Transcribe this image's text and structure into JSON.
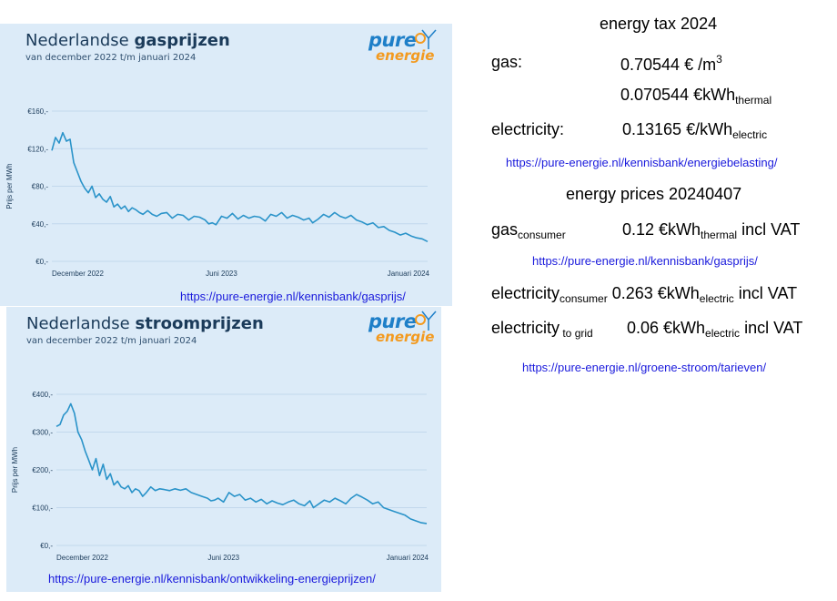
{
  "gas_chart": {
    "title_normal": "Nederlandse ",
    "title_bold": "gasprijzen",
    "subtitle": "van december 2022 t/m januari 2024",
    "logo_top": "pure",
    "logo_bottom": "energie",
    "url": "https://pure-energie.nl/kennisbank/gasprijs/"
  },
  "elec_chart": {
    "title_normal": "Nederlandse ",
    "title_bold": "stroomprijzen",
    "subtitle": "van december 2022 t/m januari 2024",
    "logo_top": "pure",
    "logo_bottom": "energie",
    "url": "https://pure-energie.nl/kennisbank/ontwikkeling-energieprijzen/"
  },
  "colors": {
    "panel_bg": "#dcebf8",
    "line": "#2a93c9",
    "title": "#1b3b5a",
    "link": "#1a1adc",
    "logo_blue": "#1e7fc8",
    "logo_orange": "#f39a1f"
  },
  "chart_data": [
    {
      "type": "line",
      "title": "Nederlandse gasprijzen",
      "subtitle": "van december 2022 t/m januari 2024",
      "xlabel": "",
      "ylabel": "Prijs per MWh",
      "yticks": [
        "€0,-",
        "€40,-",
        "€80,-",
        "€120,-",
        "€160,-"
      ],
      "ylim": [
        0,
        160
      ],
      "xtick_labels": [
        "December 2022",
        "Juni 2023",
        "Januari 2024"
      ],
      "xtick_positions": [
        5,
        186,
        396
      ],
      "grid": true,
      "x": [
        0,
        4,
        8,
        12,
        16,
        20,
        24,
        28,
        32,
        36,
        40,
        44,
        48,
        52,
        56,
        60,
        64,
        68,
        72,
        76,
        80,
        84,
        88,
        92,
        96,
        100,
        105,
        110,
        115,
        120,
        126,
        132,
        138,
        144,
        150,
        156,
        162,
        168,
        172,
        176,
        180,
        186,
        192,
        198,
        204,
        210,
        216,
        222,
        228,
        234,
        240,
        246,
        252,
        258,
        264,
        270,
        276,
        282,
        286,
        292,
        298,
        304,
        310,
        316,
        322,
        328,
        334,
        340,
        346,
        352,
        358,
        364,
        370,
        376,
        382,
        388,
        394,
        400,
        406,
        412
      ],
      "y": [
        118,
        132,
        126,
        137,
        128,
        130,
        105,
        95,
        85,
        78,
        73,
        80,
        68,
        72,
        66,
        63,
        69,
        58,
        61,
        56,
        59,
        53,
        57,
        55,
        52,
        50,
        54,
        50,
        48,
        51,
        52,
        46,
        50,
        49,
        44,
        48,
        47,
        44,
        40,
        41,
        39,
        48,
        46,
        51,
        45,
        49,
        46,
        48,
        47,
        43,
        50,
        48,
        52,
        46,
        49,
        47,
        44,
        46,
        41,
        45,
        50,
        47,
        52,
        48,
        46,
        49,
        44,
        42,
        39,
        41,
        36,
        37,
        33,
        31,
        28,
        30,
        27,
        25,
        24,
        21
      ]
    },
    {
      "type": "line",
      "title": "Nederlandse stroomprijzen",
      "subtitle": "van december 2022 t/m januari 2024",
      "xlabel": "",
      "ylabel": "Prijs per MWh",
      "yticks": [
        "€0,-",
        "€100,-",
        "€200,-",
        "€300,-",
        "€400,-"
      ],
      "ylim": [
        0,
        400
      ],
      "xtick_labels": [
        "December 2022",
        "Juni 2023",
        "Januari 2024"
      ],
      "xtick_positions": [
        5,
        186,
        396
      ],
      "grid": true,
      "x": [
        0,
        4,
        8,
        12,
        16,
        20,
        24,
        28,
        32,
        36,
        40,
        44,
        48,
        52,
        56,
        60,
        64,
        68,
        72,
        76,
        80,
        84,
        88,
        92,
        96,
        100,
        105,
        110,
        115,
        120,
        126,
        132,
        138,
        144,
        150,
        156,
        162,
        168,
        172,
        176,
        180,
        186,
        192,
        198,
        204,
        210,
        216,
        222,
        228,
        234,
        240,
        246,
        252,
        258,
        264,
        270,
        276,
        282,
        286,
        292,
        298,
        304,
        310,
        316,
        322,
        328,
        334,
        340,
        346,
        352,
        358,
        364,
        370,
        376,
        382,
        388,
        394,
        400,
        406,
        412
      ],
      "y": [
        315,
        320,
        345,
        355,
        375,
        350,
        300,
        280,
        250,
        225,
        200,
        230,
        185,
        215,
        175,
        190,
        160,
        170,
        155,
        150,
        158,
        140,
        150,
        145,
        130,
        140,
        155,
        145,
        150,
        148,
        145,
        150,
        146,
        150,
        140,
        135,
        130,
        125,
        118,
        120,
        125,
        115,
        140,
        130,
        135,
        120,
        125,
        115,
        122,
        110,
        118,
        112,
        108,
        115,
        120,
        110,
        105,
        118,
        100,
        110,
        120,
        115,
        125,
        118,
        110,
        125,
        135,
        128,
        120,
        110,
        115,
        100,
        95,
        90,
        85,
        80,
        70,
        65,
        60,
        58
      ]
    }
  ],
  "right_text": {
    "energy_tax_title": "energy tax 2024",
    "gas_label": "gas:",
    "gas_value": "0.70544 € /m",
    "gas_value_sup": "3",
    "gas_value2": "0.070544 €kWh",
    "gas_value2_sub": "thermal",
    "elec_label": "electricity:",
    "elec_value": "0.13165 €/kWh",
    "elec_value_sub": "electric",
    "url1": "https://pure-energie.nl/kennisbank/energiebelasting/",
    "energy_prices_title": "energy prices 20240407",
    "gas_consumer_label": "gas",
    "gas_consumer_sub": "consumer",
    "gas_consumer_value": "0.12 €kWh",
    "gas_consumer_value_sub": "thermal",
    "gas_consumer_value_tail": " incl VAT",
    "url2": "https://pure-energie.nl/kennisbank/gasprijs/",
    "elec_consumer_label": "electricity",
    "elec_consumer_sub": "consumer",
    "elec_consumer_value": " 0.263 €kWh",
    "elec_consumer_value_sub": "electric",
    "elec_consumer_value_tail": " incl VAT",
    "elec_grid_label": "electricity",
    "elec_grid_sub": " to grid",
    "elec_grid_value": "0.06 €kWh",
    "elec_grid_value_sub": "electric",
    "elec_grid_value_tail": " incl VAT",
    "url3": "https://pure-energie.nl/groene-stroom/tarieven/"
  }
}
